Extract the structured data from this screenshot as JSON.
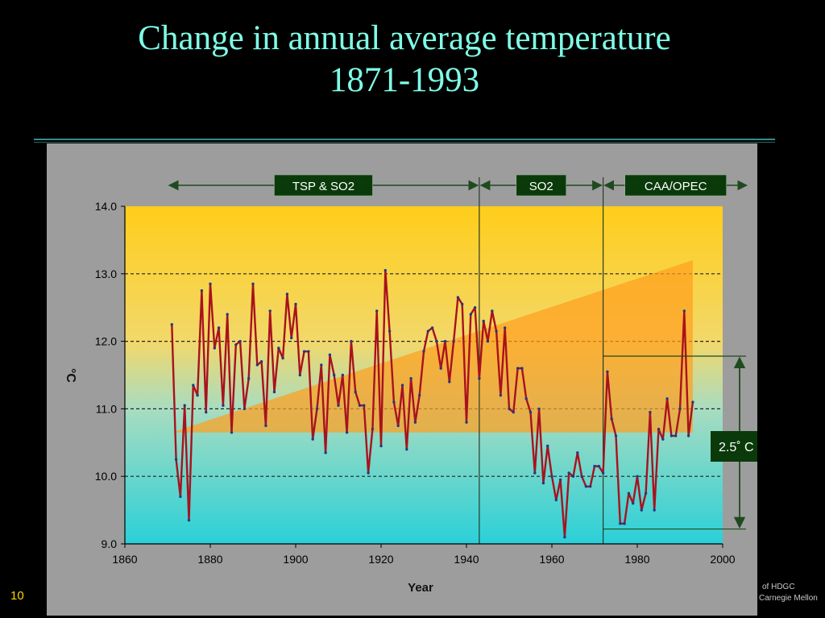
{
  "slide": {
    "title_line1": "Change in annual average temperature",
    "title_line2": "1871-1993",
    "number": "10",
    "footer_line1": "of HDGC",
    "footer_line2": "Carnegie Mellon"
  },
  "colors": {
    "background": "#000000",
    "title": "#7fffe8",
    "panel": "#9d9d9d",
    "plot_top": "#ffcd1a",
    "plot_bottom": "#2ad0d8",
    "series": "#a8121e",
    "triangle": "#ffa01e",
    "label_box": "#0a3a0a",
    "slide_number": "#ffd400"
  },
  "annotations": {
    "periods": [
      {
        "label": "TSP & SO2",
        "from": 1870,
        "to": 1943
      },
      {
        "label": "SO2",
        "from": 1943,
        "to": 1972
      },
      {
        "label": "CAA/OPEC",
        "from": 1972,
        "to": 2006
      }
    ],
    "dividers": [
      1943,
      1972
    ],
    "range_label": "2.5˚ C",
    "range_bounds": [
      11.78,
      9.22
    ],
    "trend_triangle": {
      "x_start": 1871,
      "x_end": 1993,
      "y_base": 10.65,
      "y_top_end": 13.2
    }
  },
  "chart_data": {
    "type": "line",
    "title": "",
    "xlabel": "Year",
    "ylabel": "°C",
    "xlim": [
      1860,
      2000
    ],
    "ylim": [
      9.0,
      14.0
    ],
    "x_ticks": [
      1860,
      1880,
      1900,
      1920,
      1940,
      1960,
      1980,
      2000
    ],
    "y_ticks": [
      "9.0",
      "10.0",
      "11.0",
      "12.0",
      "13.0",
      "14.0"
    ],
    "y_gridlines": [
      10.0,
      11.0,
      12.0,
      13.0
    ],
    "grid": "dashed horizontal",
    "series": [
      {
        "x": [
          1871,
          1872,
          1873,
          1874,
          1875,
          1876,
          1877,
          1878,
          1879,
          1880,
          1881,
          1882,
          1883,
          1884,
          1885,
          1886,
          1887,
          1888,
          1889,
          1890,
          1891,
          1892,
          1893,
          1894,
          1895,
          1896,
          1897,
          1898,
          1899,
          1900,
          1901,
          1902,
          1903,
          1904,
          1905,
          1906,
          1907,
          1908,
          1909,
          1910,
          1911,
          1912,
          1913,
          1914,
          1915,
          1916,
          1917,
          1918,
          1919,
          1920,
          1921,
          1922,
          1923,
          1924,
          1925,
          1926,
          1927,
          1928,
          1929,
          1930,
          1931,
          1932,
          1933,
          1934,
          1935,
          1936,
          1937,
          1938,
          1939,
          1940,
          1941,
          1942,
          1943,
          1944,
          1945,
          1946,
          1947,
          1948,
          1949,
          1950,
          1951,
          1952,
          1953,
          1954,
          1955,
          1956,
          1957,
          1958,
          1959,
          1960,
          1961,
          1962,
          1963,
          1964,
          1965,
          1966,
          1967,
          1968,
          1969,
          1970,
          1971,
          1972,
          1973,
          1974,
          1975,
          1976,
          1977,
          1978,
          1979,
          1980,
          1981,
          1982,
          1983,
          1984,
          1985,
          1986,
          1987,
          1988,
          1989,
          1990,
          1991,
          1992,
          1993
        ],
        "values": [
          12.25,
          10.25,
          9.7,
          11.05,
          9.35,
          11.35,
          11.2,
          12.75,
          10.95,
          12.85,
          11.9,
          12.2,
          11.05,
          12.4,
          10.65,
          11.95,
          12.0,
          11.0,
          11.45,
          12.85,
          11.65,
          11.7,
          10.75,
          12.45,
          11.25,
          11.9,
          11.75,
          12.7,
          12.05,
          12.55,
          11.5,
          11.85,
          11.85,
          10.55,
          11.0,
          11.65,
          10.35,
          11.8,
          11.5,
          11.05,
          11.5,
          10.65,
          12.0,
          11.25,
          11.05,
          11.05,
          10.05,
          10.7,
          12.45,
          10.45,
          13.05,
          12.15,
          11.1,
          10.75,
          11.35,
          10.4,
          11.45,
          10.8,
          11.2,
          11.85,
          12.15,
          12.2,
          12.0,
          11.6,
          12.0,
          11.4,
          12.0,
          12.65,
          12.55,
          10.8,
          12.4,
          12.5,
          11.45,
          12.3,
          12.0,
          12.45,
          12.15,
          11.2,
          12.2,
          11.0,
          10.95,
          11.6,
          11.6,
          11.15,
          10.95,
          10.05,
          11.0,
          9.9,
          10.45,
          10.0,
          9.65,
          9.95,
          9.1,
          10.05,
          10.0,
          10.35,
          10.0,
          9.85,
          9.85,
          10.15,
          10.15,
          10.05,
          11.55,
          10.85,
          10.6,
          9.3,
          9.3,
          9.75,
          9.6,
          10.0,
          9.5,
          9.75,
          10.95,
          9.5,
          10.7,
          10.55,
          11.15,
          10.6,
          10.6,
          11.0,
          12.45,
          10.6,
          11.1
        ]
      }
    ]
  }
}
